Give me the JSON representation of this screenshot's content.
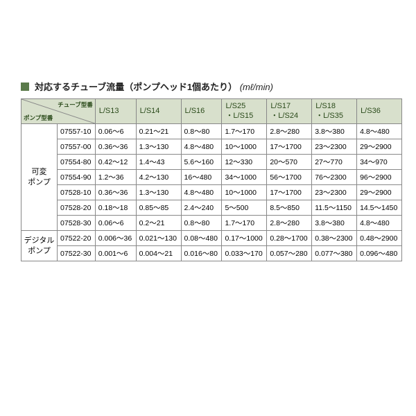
{
  "title": "対応するチューブ流量（ポンプヘッド1個あたり）",
  "unit": "(mℓ/min)",
  "header": {
    "diag_top": "チューブ型番",
    "diag_bot": "ポンプ型番",
    "cols": [
      "L/S13",
      "L/S14",
      "L/S16",
      "L/S25\n・L/S15",
      "L/S17\n・L/S24",
      "L/S18\n・L/S35",
      "L/S36"
    ]
  },
  "groups": [
    {
      "name": "可変\nポンプ",
      "rows": [
        {
          "model": "07557-10",
          "vals": [
            "0.06～6",
            "0.21～21",
            "0.8～80",
            "1.7～170",
            "2.8～280",
            "3.8～380",
            "4.8～480"
          ]
        },
        {
          "model": "07557-00",
          "vals": [
            "0.36～36",
            "1.3～130",
            "4.8～480",
            "10～1000",
            "17～1700",
            "23～2300",
            "29～2900"
          ]
        },
        {
          "model": "07554-80",
          "vals": [
            "0.42～12",
            "1.4～43",
            "5.6～160",
            "12～330",
            "20～570",
            "27～770",
            "34～970"
          ]
        },
        {
          "model": "07554-90",
          "vals": [
            "1.2～36",
            "4.2～130",
            "16～480",
            "34～1000",
            "56～1700",
            "76～2300",
            "96～2900"
          ]
        },
        {
          "model": "07528-10",
          "vals": [
            "0.36～36",
            "1.3～130",
            "4.8～480",
            "10～1000",
            "17～1700",
            "23～2300",
            "29～2900"
          ]
        },
        {
          "model": "07528-20",
          "vals": [
            "0.18～18",
            "0.85～85",
            "2.4～240",
            "5～500",
            "8.5～850",
            "11.5～1150",
            "14.5～1450"
          ]
        },
        {
          "model": "07528-30",
          "vals": [
            "0.06～6",
            "0.2～21",
            "0.8～80",
            "1.7～170",
            "2.8～280",
            "3.8～380",
            "4.8～480"
          ]
        }
      ]
    },
    {
      "name": "デジタル\nポンプ",
      "rows": [
        {
          "model": "07522-20",
          "vals": [
            "0.006～36",
            "0.021～130",
            "0.08～480",
            "0.17～1000",
            "0.28～1700",
            "0.38～2300",
            "0.48～2900"
          ]
        },
        {
          "model": "07522-30",
          "vals": [
            "0.001～6",
            "0.004～21",
            "0.016～80",
            "0.033～170",
            "0.057～280",
            "0.077～380",
            "0.096～480"
          ]
        }
      ]
    }
  ],
  "colors": {
    "bullet": "#5a7a4a",
    "header_bg": "#d8e0cc",
    "header_text": "#2a4a1a",
    "border": "#888888"
  }
}
